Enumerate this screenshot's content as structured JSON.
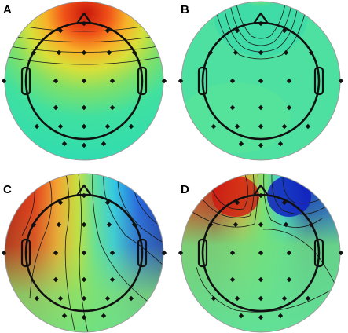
{
  "panels": [
    {
      "label": "A",
      "pattern": "frontal-positive"
    },
    {
      "label": "B",
      "pattern": "focal-nasion-positive"
    },
    {
      "label": "C",
      "pattern": "left-positive-right-negative"
    },
    {
      "label": "D",
      "pattern": "left-positive-right-negative-focal"
    }
  ],
  "colormap": {
    "positive": "#d01a10",
    "neutral": "#39e0a8",
    "negative": "#1030d0"
  }
}
